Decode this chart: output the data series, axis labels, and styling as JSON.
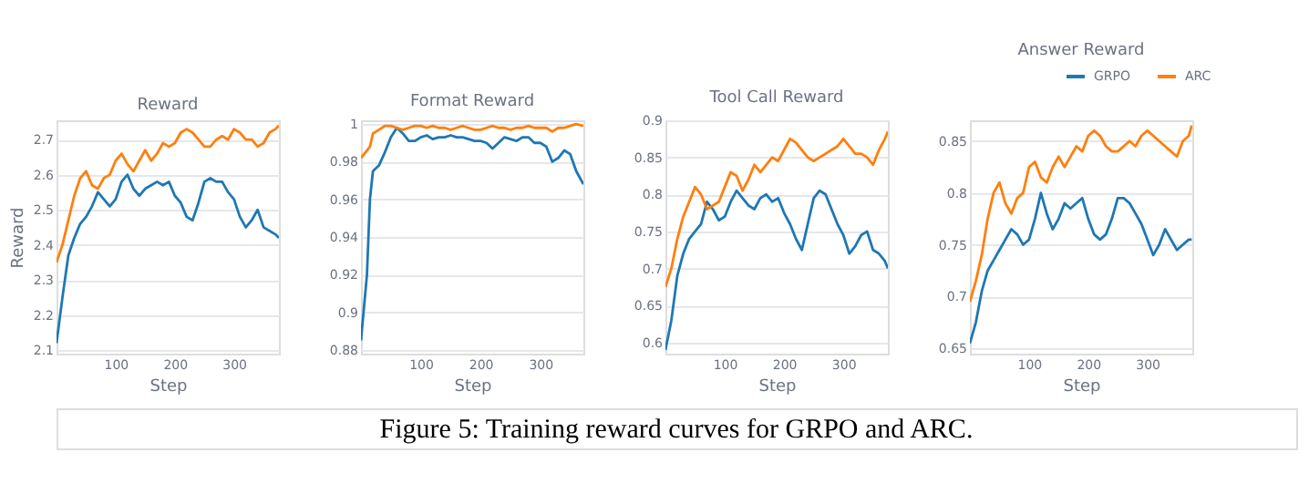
{
  "chart_data": [
    {
      "type": "line",
      "title": "Reward",
      "xlabel": "Step",
      "ylabel": "Reward",
      "xlim": [
        0,
        376
      ],
      "xticks": [
        100,
        200,
        300
      ],
      "ylim": [
        2.09,
        2.755
      ],
      "yticks": [
        2.1,
        2.2,
        2.3,
        2.4,
        2.5,
        2.6,
        2.7
      ],
      "grid": "y",
      "legend": false,
      "marker": "none",
      "line_style": "solid",
      "annotations": [
        "Figure 5: Training reward curves for GRPO and ARC."
      ],
      "x": [
        0,
        10,
        20,
        30,
        40,
        50,
        60,
        70,
        80,
        90,
        100,
        110,
        120,
        130,
        140,
        150,
        160,
        170,
        180,
        190,
        200,
        210,
        220,
        230,
        240,
        250,
        260,
        270,
        280,
        290,
        300,
        310,
        320,
        330,
        340,
        350,
        360,
        370,
        376
      ],
      "series": [
        {
          "color": "#1f77b4",
          "values": [
            2.12,
            2.25,
            2.37,
            2.42,
            2.46,
            2.48,
            2.51,
            2.55,
            2.53,
            2.51,
            2.53,
            2.58,
            2.6,
            2.56,
            2.54,
            2.56,
            2.57,
            2.58,
            2.57,
            2.58,
            2.54,
            2.52,
            2.48,
            2.47,
            2.52,
            2.58,
            2.59,
            2.58,
            2.58,
            2.55,
            2.53,
            2.48,
            2.45,
            2.47,
            2.5,
            2.45,
            2.44,
            2.43,
            2.42
          ]
        },
        {
          "color": "#ff7f0e",
          "values": [
            2.35,
            2.4,
            2.47,
            2.54,
            2.59,
            2.61,
            2.57,
            2.56,
            2.59,
            2.6,
            2.64,
            2.66,
            2.63,
            2.61,
            2.64,
            2.67,
            2.64,
            2.66,
            2.69,
            2.68,
            2.69,
            2.72,
            2.73,
            2.72,
            2.7,
            2.68,
            2.68,
            2.7,
            2.71,
            2.7,
            2.73,
            2.72,
            2.7,
            2.7,
            2.68,
            2.69,
            2.72,
            2.73,
            2.74
          ]
        }
      ]
    },
    {
      "type": "line",
      "title": "Format Reward",
      "xlabel": "Step",
      "xlim": [
        0,
        372
      ],
      "xticks": [
        100,
        200,
        300
      ],
      "ylim": [
        0.878,
        1.002
      ],
      "yticks": [
        0.88,
        0.9,
        0.92,
        0.94,
        0.96,
        0.98,
        1
      ],
      "grid": "y",
      "legend": false,
      "marker": "none",
      "line_style": "solid",
      "x": [
        0,
        10,
        15,
        20,
        30,
        40,
        50,
        60,
        70,
        80,
        90,
        100,
        110,
        120,
        130,
        140,
        150,
        160,
        170,
        180,
        190,
        200,
        210,
        220,
        230,
        240,
        250,
        260,
        270,
        280,
        290,
        300,
        310,
        320,
        330,
        340,
        350,
        360,
        372
      ],
      "series": [
        {
          "color": "#1f77b4",
          "values": [
            0.885,
            0.92,
            0.96,
            0.975,
            0.978,
            0.985,
            0.993,
            0.998,
            0.995,
            0.991,
            0.991,
            0.993,
            0.994,
            0.992,
            0.993,
            0.993,
            0.994,
            0.993,
            0.993,
            0.992,
            0.991,
            0.991,
            0.99,
            0.987,
            0.99,
            0.993,
            0.992,
            0.991,
            0.993,
            0.993,
            0.99,
            0.99,
            0.988,
            0.98,
            0.982,
            0.986,
            0.984,
            0.975,
            0.968
          ]
        },
        {
          "color": "#ff7f0e",
          "values": [
            0.982,
            0.986,
            0.988,
            0.995,
            0.997,
            0.999,
            0.999,
            0.998,
            0.997,
            0.998,
            0.999,
            0.999,
            0.998,
            0.999,
            0.998,
            0.998,
            0.997,
            0.998,
            0.999,
            0.998,
            0.997,
            0.997,
            0.998,
            0.999,
            0.998,
            0.998,
            0.997,
            0.998,
            0.998,
            0.999,
            0.998,
            0.998,
            0.998,
            0.996,
            0.998,
            0.998,
            0.999,
            1.0,
            0.999
          ]
        }
      ]
    },
    {
      "type": "line",
      "title": "Tool Call Reward",
      "xlabel": "Step",
      "xlim": [
        0,
        375
      ],
      "xticks": [
        100,
        200,
        300
      ],
      "ylim": [
        0.585,
        0.9
      ],
      "yticks": [
        0.6,
        0.65,
        0.7,
        0.75,
        0.8,
        0.85,
        0.9
      ],
      "grid": "y",
      "legend": false,
      "marker": "none",
      "line_style": "solid",
      "x": [
        0,
        10,
        20,
        30,
        40,
        50,
        60,
        70,
        80,
        90,
        100,
        110,
        120,
        130,
        140,
        150,
        160,
        170,
        180,
        190,
        200,
        210,
        220,
        230,
        240,
        250,
        260,
        270,
        280,
        290,
        300,
        310,
        320,
        330,
        340,
        350,
        360,
        370,
        375
      ],
      "series": [
        {
          "color": "#1f77b4",
          "values": [
            0.59,
            0.63,
            0.69,
            0.72,
            0.74,
            0.75,
            0.76,
            0.79,
            0.78,
            0.765,
            0.77,
            0.79,
            0.805,
            0.795,
            0.785,
            0.78,
            0.795,
            0.8,
            0.79,
            0.795,
            0.775,
            0.76,
            0.74,
            0.725,
            0.76,
            0.795,
            0.805,
            0.8,
            0.78,
            0.76,
            0.745,
            0.72,
            0.73,
            0.745,
            0.75,
            0.725,
            0.72,
            0.71,
            0.7
          ]
        },
        {
          "color": "#ff7f0e",
          "values": [
            0.675,
            0.7,
            0.74,
            0.77,
            0.79,
            0.81,
            0.8,
            0.78,
            0.785,
            0.79,
            0.81,
            0.83,
            0.825,
            0.805,
            0.82,
            0.84,
            0.83,
            0.84,
            0.85,
            0.845,
            0.86,
            0.875,
            0.87,
            0.86,
            0.85,
            0.845,
            0.85,
            0.855,
            0.86,
            0.865,
            0.875,
            0.865,
            0.855,
            0.855,
            0.85,
            0.84,
            0.86,
            0.875,
            0.885
          ]
        }
      ]
    },
    {
      "type": "line",
      "title": "Answer Reward",
      "xlabel": "Step",
      "xlim": [
        0,
        376
      ],
      "xticks": [
        100,
        200,
        300
      ],
      "ylim": [
        0.645,
        0.87
      ],
      "yticks": [
        0.65,
        0.7,
        0.75,
        0.8,
        0.85
      ],
      "grid": "y",
      "legend": "top right",
      "marker": "none",
      "line_style": "solid",
      "x": [
        0,
        10,
        20,
        30,
        40,
        50,
        60,
        70,
        80,
        90,
        100,
        110,
        120,
        130,
        140,
        150,
        160,
        170,
        180,
        190,
        200,
        210,
        220,
        230,
        240,
        250,
        260,
        270,
        280,
        290,
        300,
        310,
        320,
        330,
        340,
        350,
        360,
        370,
        375
      ],
      "series": [
        {
          "name": "GRPO",
          "color": "#1f77b4",
          "values": [
            0.655,
            0.675,
            0.705,
            0.725,
            0.735,
            0.745,
            0.755,
            0.765,
            0.76,
            0.75,
            0.755,
            0.775,
            0.8,
            0.78,
            0.765,
            0.775,
            0.79,
            0.785,
            0.79,
            0.795,
            0.775,
            0.76,
            0.755,
            0.76,
            0.775,
            0.795,
            0.795,
            0.79,
            0.78,
            0.77,
            0.755,
            0.74,
            0.75,
            0.765,
            0.755,
            0.745,
            0.75,
            0.755,
            0.755
          ]
        },
        {
          "name": "ARC",
          "color": "#ff7f0e",
          "values": [
            0.695,
            0.715,
            0.74,
            0.775,
            0.8,
            0.81,
            0.79,
            0.78,
            0.795,
            0.8,
            0.825,
            0.83,
            0.815,
            0.81,
            0.825,
            0.835,
            0.825,
            0.835,
            0.845,
            0.84,
            0.855,
            0.86,
            0.855,
            0.845,
            0.84,
            0.84,
            0.845,
            0.85,
            0.845,
            0.855,
            0.86,
            0.855,
            0.85,
            0.845,
            0.84,
            0.835,
            0.85,
            0.855,
            0.865
          ]
        }
      ]
    }
  ]
}
